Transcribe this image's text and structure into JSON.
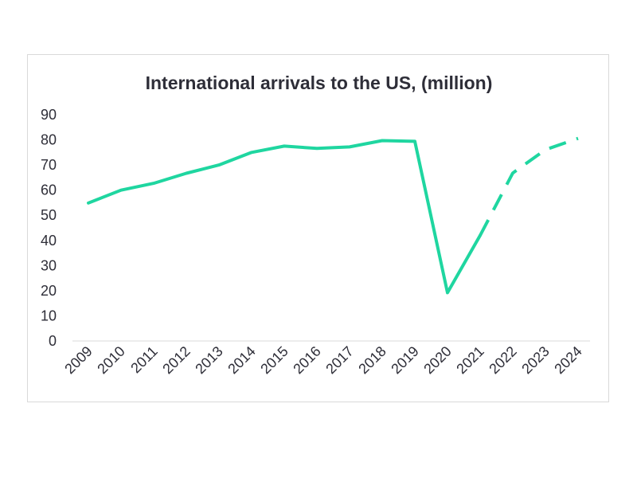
{
  "chart_data": {
    "type": "line",
    "title": "International arrivals to the US, (million)",
    "xlabel": "",
    "ylabel": "",
    "categories": [
      "2009",
      "2010",
      "2011",
      "2012",
      "2013",
      "2014",
      "2015",
      "2016",
      "2017",
      "2018",
      "2019",
      "2020",
      "2021",
      "2022",
      "2023",
      "2024"
    ],
    "series": [
      {
        "values": [
          54.9,
          60.0,
          62.7,
          66.7,
          70.0,
          75.0,
          77.5,
          76.6,
          77.2,
          79.7,
          79.4,
          19.2,
          42.0,
          66.8,
          76.1,
          80.6
        ],
        "solid_through": "2021",
        "projected_from": "2021",
        "color": "#1fd6a0"
      }
    ],
    "ylim": [
      0,
      90
    ],
    "yticks": [
      0,
      10,
      20,
      30,
      40,
      50,
      60,
      70,
      80,
      90
    ],
    "grid": false,
    "legend": "none",
    "axis_color": "#d9d9d9",
    "text_color": "#2e2e38"
  }
}
